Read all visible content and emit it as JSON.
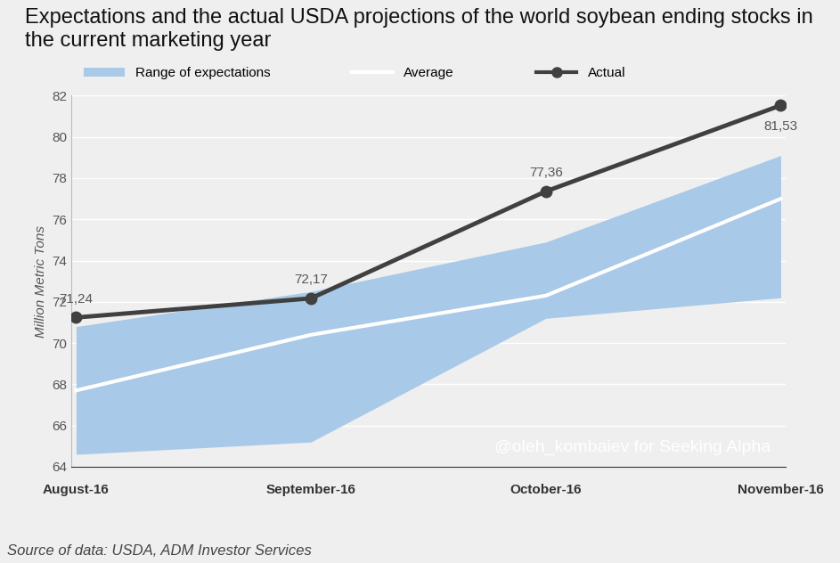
{
  "chart_data": {
    "type": "line",
    "title": "Expectations and the actual USDA projections of the world soybean ending stocks in the current marketing year",
    "y_label": "Million Metric Tons",
    "categories": [
      "August-16",
      "September-16",
      "October-16",
      "November-16"
    ],
    "series": [
      {
        "name": "Range of expectations",
        "type": "area",
        "color": "#a9c9e8",
        "low": [
          64.6,
          65.2,
          71.2,
          72.2
        ],
        "high": [
          70.8,
          72.5,
          74.9,
          79.1
        ]
      },
      {
        "name": "Average",
        "type": "line",
        "color": "#ffffff",
        "line_style": "solid",
        "values": [
          67.7,
          70.4,
          72.3,
          77.0
        ]
      },
      {
        "name": "Actual",
        "type": "line",
        "color": "#404040",
        "marker": "o",
        "line_style": "solid",
        "values": [
          71.24,
          72.17,
          77.36,
          81.53
        ],
        "value_labels": [
          "71,24",
          "72,17",
          "77,36",
          "81,53"
        ],
        "data_labels": true
      }
    ],
    "ylim": [
      64,
      82
    ],
    "yticks": [
      64,
      66,
      68,
      70,
      72,
      74,
      76,
      78,
      80,
      82
    ],
    "grid": true,
    "legend": "upper left",
    "watermark": "@oleh_kombaiev for Seeking Alpha",
    "source": "Source of data: USDA, ADM Investor Services"
  }
}
